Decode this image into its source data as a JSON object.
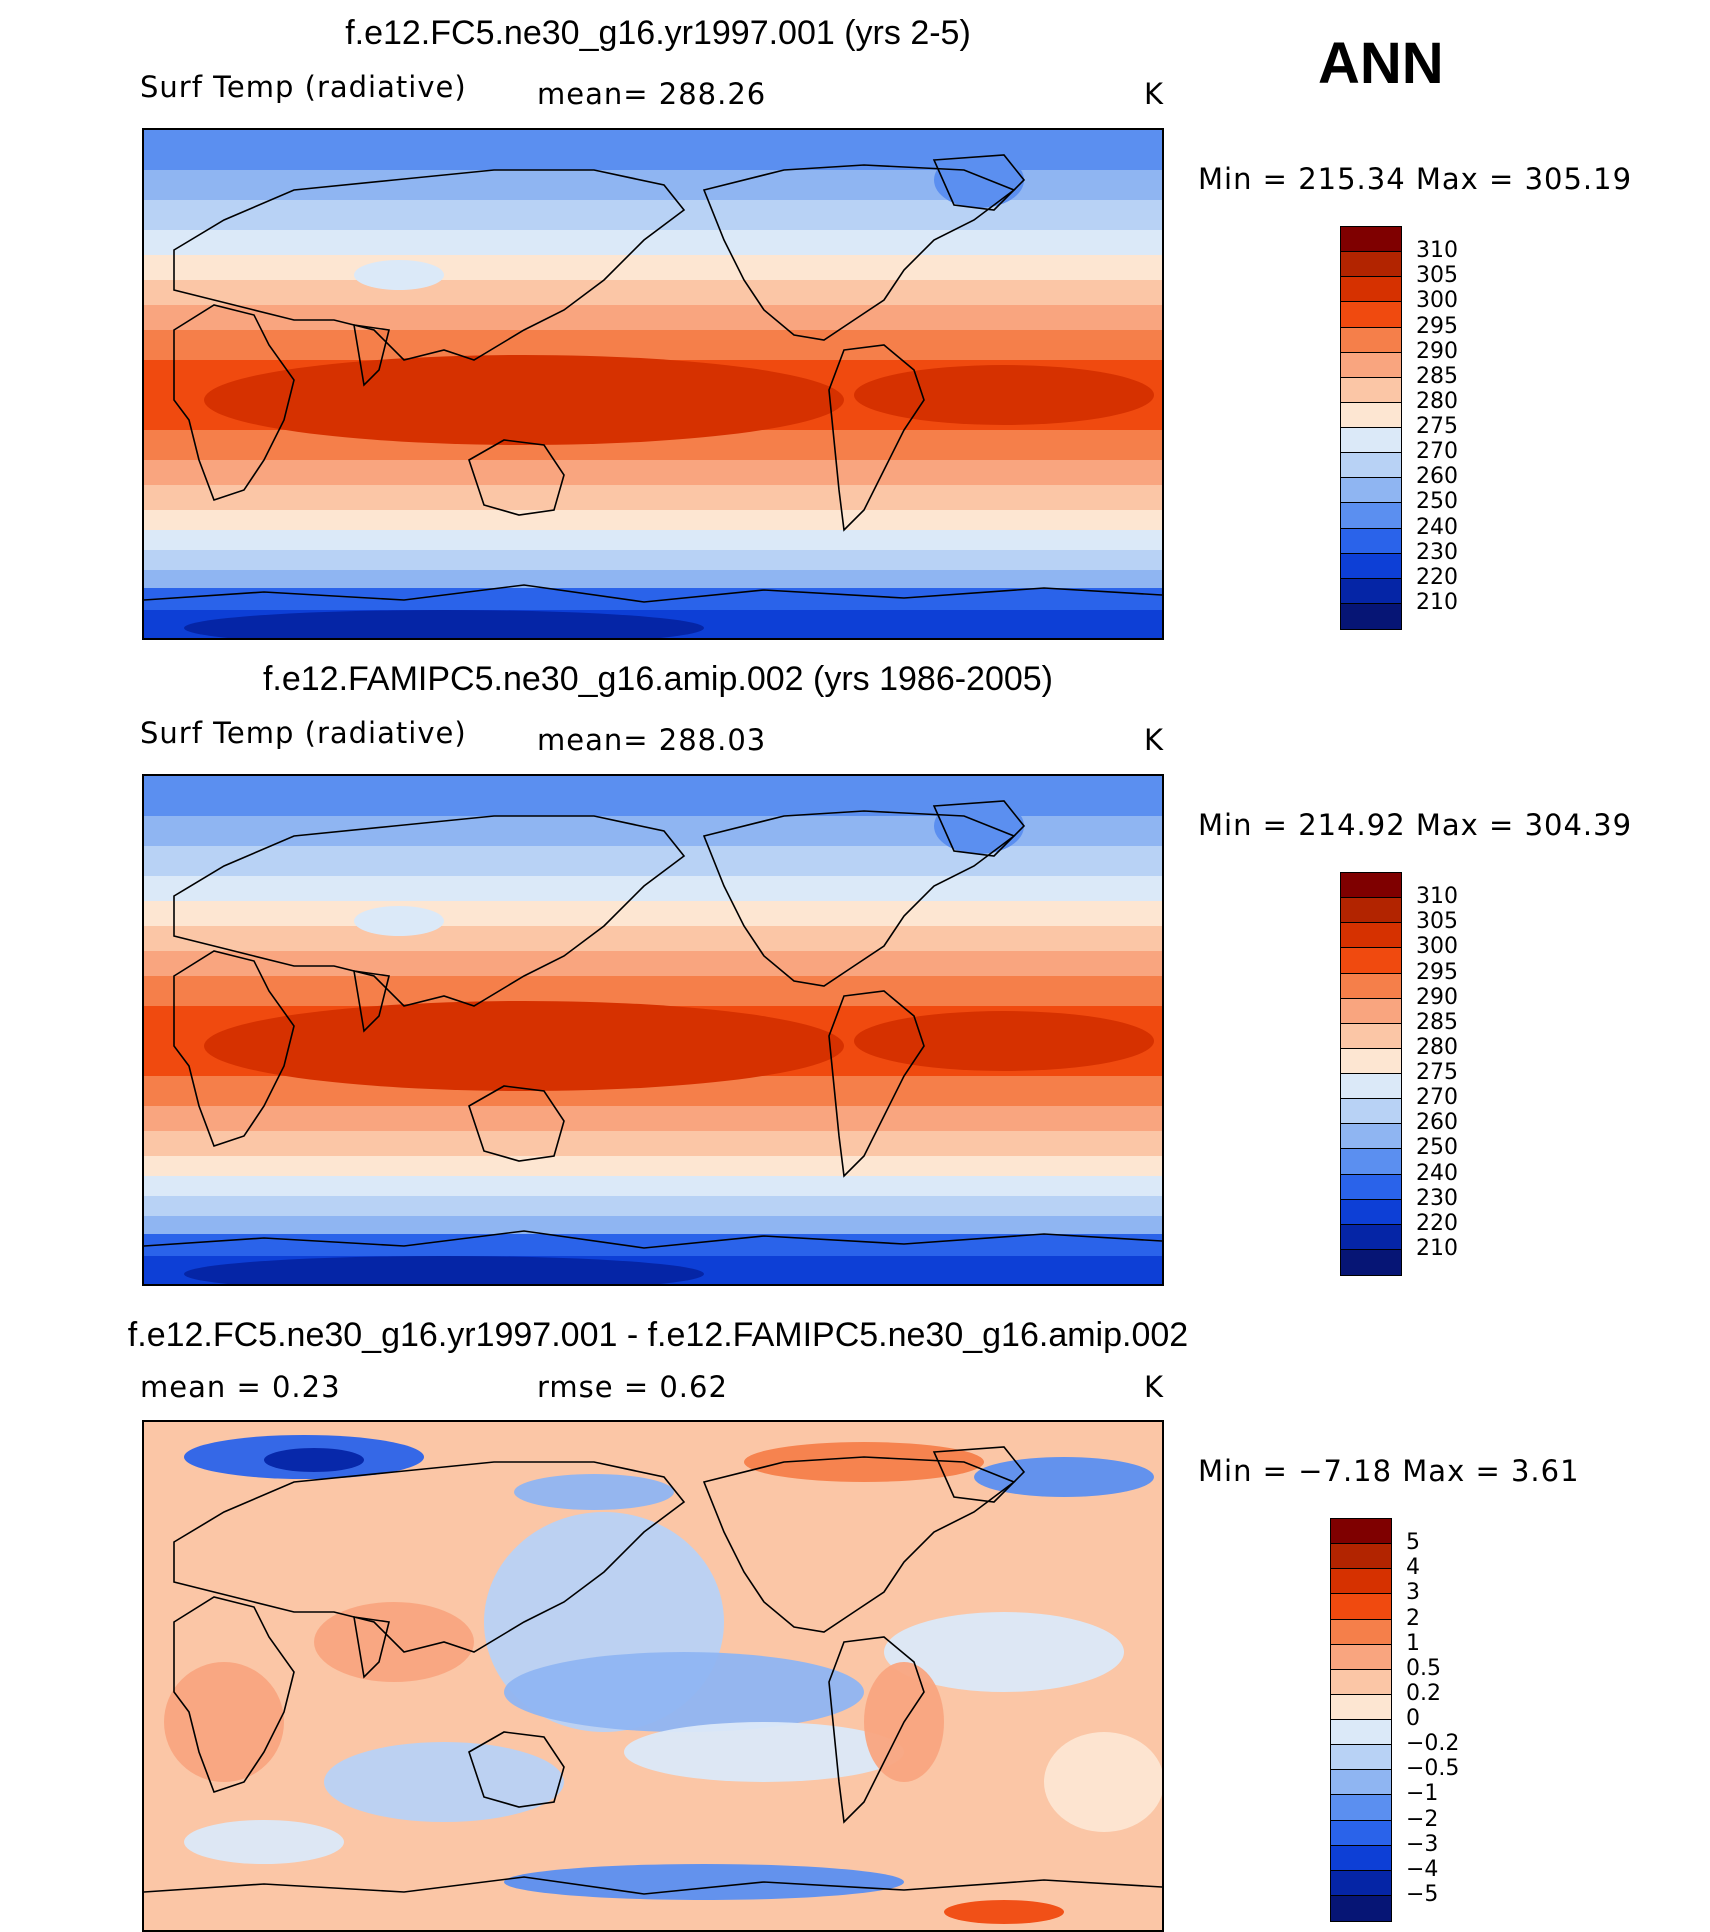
{
  "season": "ANN",
  "panels": [
    {
      "title": "f.e12.FC5.ne30_g16.yr1997.001 (yrs 2-5)",
      "variable": "Surf Temp (radiative)",
      "stat": "mean= 288.26",
      "units": "K",
      "minmax": "Min = 215.34 Max = 305.19",
      "field": "absolute"
    },
    {
      "title": "f.e12.FAMIPC5.ne30_g16.amip.002 (yrs 1986-2005)",
      "variable": "Surf Temp (radiative)",
      "stat": "mean= 288.03",
      "units": "K",
      "minmax": "Min = 214.92 Max = 304.39",
      "field": "absolute"
    },
    {
      "title": "f.e12.FC5.ne30_g16.yr1997.001 - f.e12.FAMIPC5.ne30_g16.amip.002",
      "stat_left": "mean =   0.23",
      "stat_right": "rmse =   0.62",
      "units": "K",
      "minmax": "Min =  −7.18 Max =   3.61",
      "field": "difference"
    }
  ],
  "colorbar_abs": {
    "labels": [
      "310",
      "305",
      "300",
      "295",
      "290",
      "285",
      "280",
      "275",
      "270",
      "260",
      "250",
      "240",
      "230",
      "220",
      "210"
    ],
    "colors": [
      "#7f0000",
      "#b22400",
      "#d63100",
      "#f04a0f",
      "#f57f4a",
      "#f9a57f",
      "#fbc6a6",
      "#fde6d2",
      "#dbe9f8",
      "#b8d2f5",
      "#8fb5f2",
      "#5b8ff0",
      "#2a63ea",
      "#0d3fd6",
      "#0525a6",
      "#061575"
    ]
  },
  "colorbar_diff": {
    "labels": [
      "5",
      "4",
      "3",
      "2",
      "1",
      "0.5",
      "0.2",
      "0",
      "−0.2",
      "−0.5",
      "−1",
      "−2",
      "−3",
      "−4",
      "−5"
    ],
    "colors": [
      "#7f0000",
      "#b22400",
      "#d63100",
      "#f04a0f",
      "#f57f4a",
      "#f9a57f",
      "#fbc6a6",
      "#fde6d2",
      "#dbe9f8",
      "#b8d2f5",
      "#8fb5f2",
      "#5b8ff0",
      "#2a63ea",
      "#0d3fd6",
      "#0525a6",
      "#061575"
    ]
  }
}
